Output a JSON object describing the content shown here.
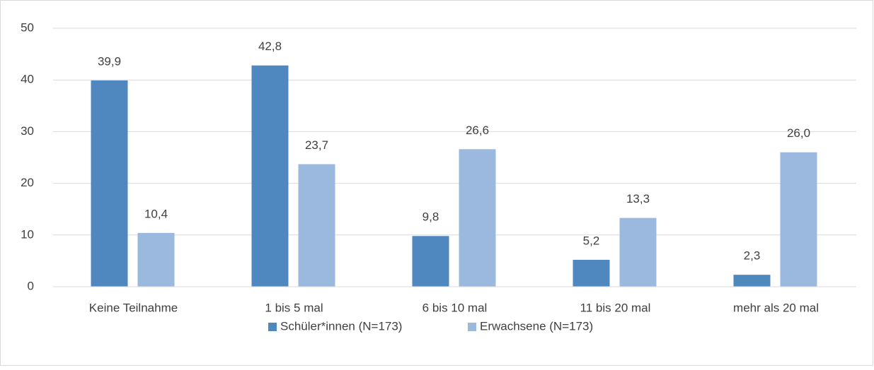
{
  "chart_data": {
    "type": "bar",
    "categories": [
      "Keine Teilnahme",
      "1 bis 5 mal",
      "6 bis 10 mal",
      "11 bis 20 mal",
      "mehr als 20 mal"
    ],
    "series": [
      {
        "name": "Schüler*innen (N=173)",
        "color": "#4f87bf",
        "values": [
          39.9,
          42.8,
          9.8,
          5.2,
          2.3
        ],
        "value_labels": [
          "39,9",
          "42,8",
          "9,8",
          "5,2",
          "2,3"
        ]
      },
      {
        "name": "Erwachsene (N=173)",
        "color": "#9bb9df",
        "values": [
          10.4,
          23.7,
          26.6,
          13.3,
          26.0
        ],
        "value_labels": [
          "10,4",
          "23,7",
          "26,6",
          "13,3",
          "26,0"
        ]
      }
    ],
    "ylim": [
      0,
      50
    ],
    "yticks": [
      0,
      10,
      20,
      30,
      40,
      50
    ],
    "grid": true,
    "legend": "bottom"
  }
}
